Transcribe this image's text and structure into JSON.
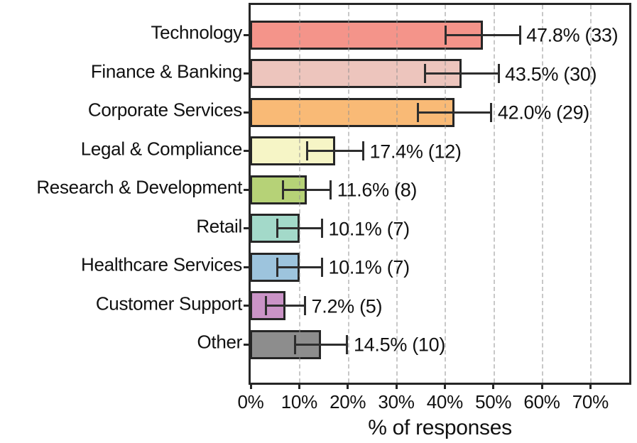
{
  "figure": {
    "background": "#ffffff",
    "axis_color": "#262626",
    "grid_color": "#cfcfcf",
    "error_bar_color": "#2e2e2e",
    "text_color": "#111111"
  },
  "chart_data": {
    "type": "bar",
    "orientation": "horizontal",
    "title": "",
    "xlabel": "% of responses",
    "ylabel": "",
    "x_axis": {
      "min": 0,
      "max": 78,
      "tick_values": [
        0,
        10,
        20,
        30,
        40,
        50,
        60,
        70
      ],
      "tick_labels": [
        "0%",
        "10%",
        "20%",
        "30%",
        "40%",
        "50%",
        "60%",
        "70%"
      ],
      "grid": "dashed-vertical"
    },
    "categories": [
      "Technology",
      "Finance & Banking",
      "Corporate Services",
      "Legal & Compliance",
      "Research & Development",
      "Retail",
      "Healthcare Services",
      "Customer Support",
      "Other"
    ],
    "values": [
      47.8,
      43.5,
      42.0,
      17.4,
      11.6,
      10.1,
      10.1,
      7.2,
      14.5
    ],
    "counts": [
      33,
      30,
      29,
      12,
      8,
      7,
      7,
      5,
      10
    ],
    "bar_labels": [
      "47.8% (33)",
      "43.5% (30)",
      "42.0% (29)",
      "17.4% (12)",
      "11.6% (8)",
      "10.1% (7)",
      "10.1% (7)",
      "7.2% (5)",
      "14.5% (10)"
    ],
    "error_low": [
      40.1,
      35.9,
      34.4,
      11.6,
      6.7,
      5.5,
      5.5,
      3.2,
      9.1
    ],
    "error_high": [
      55.5,
      51.1,
      49.6,
      23.2,
      16.5,
      14.7,
      14.7,
      11.2,
      19.9
    ],
    "bar_colors": [
      "#F4948A",
      "#EDC5BD",
      "#F9BA76",
      "#F6F5C6",
      "#B6D277",
      "#A3D9C9",
      "#9DC4DD",
      "#CA93C6",
      "#8D8D8D"
    ],
    "bar_edge_color": "#262626",
    "legend": "none"
  }
}
